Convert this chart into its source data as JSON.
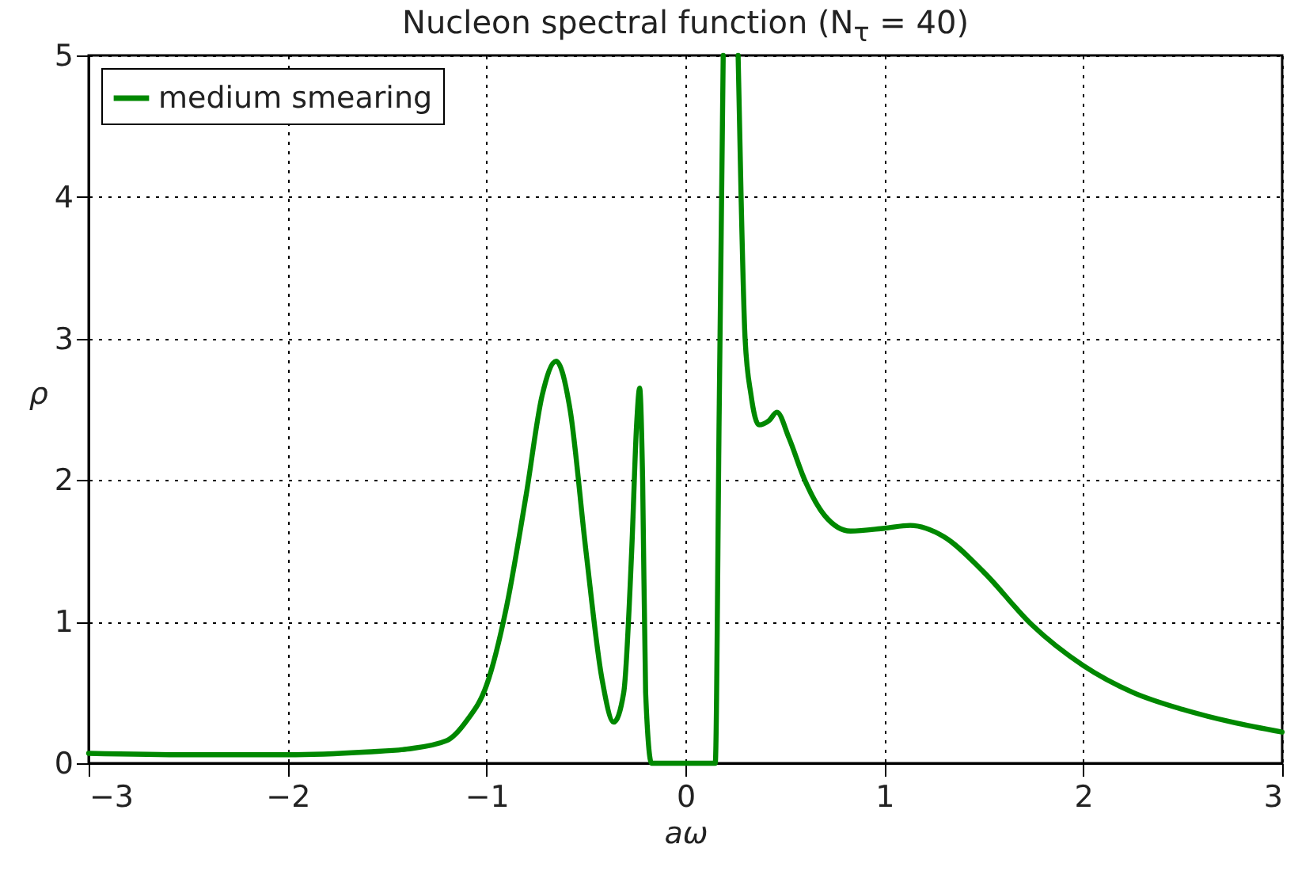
{
  "chart_data": {
    "type": "line",
    "title": "Nucleon spectral function (N$_{τ}$ = 40)",
    "xlabel": "aω",
    "ylabel": "ρ",
    "xlim": [
      -3,
      3
    ],
    "ylim": [
      0,
      5
    ],
    "xticks": [
      -3,
      -2,
      -1,
      0,
      1,
      2,
      3
    ],
    "yticks": [
      0,
      1,
      2,
      3,
      4,
      5
    ],
    "grid": true,
    "legend": "top left",
    "series": [
      {
        "name": "medium smearing",
        "color": "#008800",
        "x": [
          -3,
          -2.5,
          -2,
          -1.6,
          -1.4,
          -1.2,
          -1.1,
          -1,
          -0.9,
          -0.8,
          -0.72,
          -0.65,
          -0.58,
          -0.5,
          -0.42,
          -0.36,
          -0.31,
          -0.27,
          -0.245,
          -0.23,
          -0.215,
          -0.2,
          -0.17,
          0,
          0.15,
          0.17,
          0.19,
          0.2,
          0.265,
          0.28,
          0.3,
          0.33,
          0.37,
          0.42,
          0.46,
          0.52,
          0.6,
          0.7,
          0.83,
          1,
          1.13,
          1.3,
          1.5,
          1.74,
          2,
          2.25,
          2.5,
          2.75,
          3
        ],
        "values": [
          0.07,
          0.06,
          0.06,
          0.08,
          0.1,
          0.16,
          0.3,
          0.55,
          1.1,
          1.9,
          2.6,
          2.84,
          2.5,
          1.5,
          0.6,
          0.29,
          0.5,
          1.5,
          2.4,
          2.65,
          2.0,
          0.5,
          0,
          0,
          0,
          2.5,
          5,
          null,
          5,
          4,
          3,
          2.6,
          2.39,
          2.42,
          2.48,
          2.3,
          2,
          1.75,
          1.64,
          1.66,
          1.68,
          1.6,
          1.35,
          0.98,
          0.69,
          0.5,
          0.38,
          0.29,
          0.22
        ]
      }
    ]
  }
}
